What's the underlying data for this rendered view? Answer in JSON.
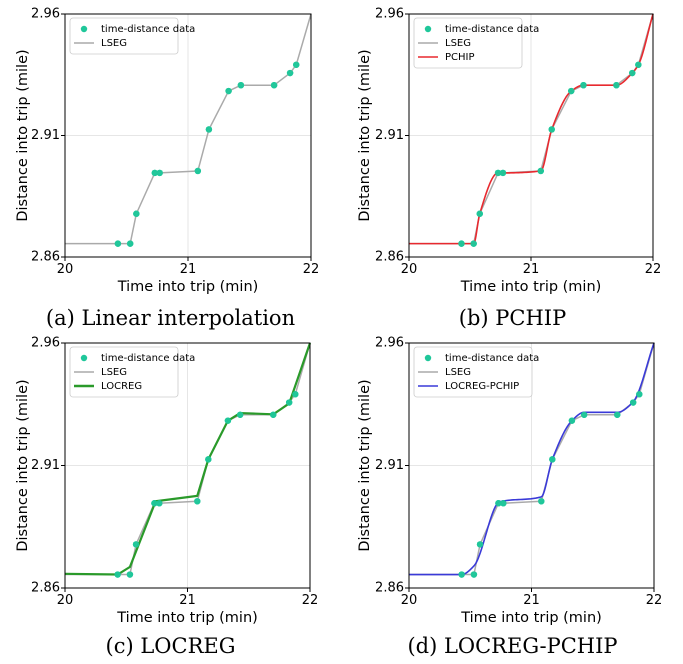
{
  "colors": {
    "data": "#1fc79a",
    "lseg": "#aaaaaa",
    "pchip": "#e8292f",
    "locreg": "#2a9a2a",
    "locreg_pchip": "#3a3ad8",
    "grid": "#e6e6e6"
  },
  "chart_data": [
    {
      "type": "line",
      "caption": "(a) Linear interpolation",
      "xlabel": "Time into trip (min)",
      "ylabel": "Distance into trip (mile)",
      "xlim": [
        20,
        22
      ],
      "ylim": [
        2.86,
        2.96
      ],
      "xticks": [
        "20",
        "21",
        "22"
      ],
      "yticks": [
        "2.86",
        "2.91",
        "2.96"
      ],
      "grid": true,
      "legend_position": "top-left",
      "series": [
        {
          "name": "time-distance data",
          "kind": "scatter",
          "color_key": "data",
          "x": [
            20.43,
            20.53,
            20.58,
            20.73,
            20.77,
            21.08,
            21.17,
            21.33,
            21.43,
            21.7,
            21.83,
            21.88
          ],
          "y": [
            2.8655,
            2.8655,
            2.8778,
            2.8946,
            2.8946,
            2.8954,
            2.9125,
            2.9283,
            2.9307,
            2.9307,
            2.9357,
            2.9391
          ]
        },
        {
          "name": "LSEG",
          "kind": "line",
          "color_key": "lseg",
          "x": [
            20,
            20.43,
            20.53,
            20.58,
            20.73,
            20.77,
            21.08,
            21.17,
            21.33,
            21.43,
            21.7,
            21.83,
            21.88,
            22
          ],
          "y": [
            2.8655,
            2.8655,
            2.8655,
            2.8778,
            2.8946,
            2.8946,
            2.8954,
            2.9125,
            2.9283,
            2.9307,
            2.9307,
            2.9357,
            2.9391,
            2.96
          ]
        }
      ]
    },
    {
      "type": "line",
      "caption": "(b) PCHIP",
      "xlabel": "Time into trip (min)",
      "ylabel": "Distance into trip (mile)",
      "xlim": [
        20,
        22
      ],
      "ylim": [
        2.86,
        2.96
      ],
      "xticks": [
        "20",
        "21",
        "22"
      ],
      "yticks": [
        "2.86",
        "2.91",
        "2.96"
      ],
      "grid": true,
      "legend_position": "top-left",
      "series": [
        {
          "name": "time-distance data",
          "kind": "scatter",
          "color_key": "data",
          "x": [
            20.43,
            20.53,
            20.58,
            20.73,
            20.77,
            21.08,
            21.17,
            21.33,
            21.43,
            21.7,
            21.83,
            21.88
          ],
          "y": [
            2.8655,
            2.8655,
            2.8778,
            2.8946,
            2.8946,
            2.8954,
            2.9125,
            2.9283,
            2.9307,
            2.9307,
            2.9357,
            2.9391
          ]
        },
        {
          "name": "LSEG",
          "kind": "line",
          "color_key": "lseg",
          "x": [
            20,
            20.43,
            20.53,
            20.58,
            20.73,
            20.77,
            21.08,
            21.17,
            21.33,
            21.43,
            21.7,
            21.83,
            21.88,
            22
          ],
          "y": [
            2.8655,
            2.8655,
            2.8655,
            2.8778,
            2.8946,
            2.8946,
            2.8954,
            2.9125,
            2.9283,
            2.9307,
            2.9307,
            2.9357,
            2.9391,
            2.96
          ]
        },
        {
          "name": "PCHIP",
          "kind": "line",
          "color_key": "pchip",
          "x": [
            20,
            20.43,
            20.53,
            20.58,
            20.73,
            20.77,
            21.08,
            21.17,
            21.33,
            21.43,
            21.7,
            21.83,
            21.88,
            22
          ],
          "y": [
            2.8655,
            2.8655,
            2.8655,
            2.8778,
            2.8946,
            2.8946,
            2.8954,
            2.9125,
            2.9283,
            2.9307,
            2.9307,
            2.9357,
            2.9391,
            2.96
          ]
        }
      ]
    },
    {
      "type": "line",
      "caption": "(c) LOCREG",
      "xlabel": "Time into trip (min)",
      "ylabel": "Distance into trip (mile)",
      "xlim": [
        20,
        22
      ],
      "ylim": [
        2.86,
        2.96
      ],
      "xticks": [
        "20",
        "21",
        "22"
      ],
      "yticks": [
        "2.86",
        "2.91",
        "2.96"
      ],
      "grid": true,
      "legend_position": "top-left",
      "series": [
        {
          "name": "time-distance data",
          "kind": "scatter",
          "color_key": "data",
          "x": [
            20.43,
            20.53,
            20.58,
            20.73,
            20.77,
            21.08,
            21.17,
            21.33,
            21.43,
            21.7,
            21.83,
            21.88
          ],
          "y": [
            2.8655,
            2.8655,
            2.8778,
            2.8946,
            2.8946,
            2.8954,
            2.9125,
            2.9283,
            2.9307,
            2.9307,
            2.9357,
            2.9391
          ]
        },
        {
          "name": "LSEG",
          "kind": "line",
          "color_key": "lseg",
          "x": [
            20,
            20.43,
            20.53,
            20.58,
            20.73,
            20.77,
            21.08,
            21.17,
            21.33,
            21.43,
            21.7,
            21.83,
            21.88,
            22
          ],
          "y": [
            2.8655,
            2.8655,
            2.8655,
            2.8778,
            2.8946,
            2.8946,
            2.8954,
            2.9125,
            2.9283,
            2.9307,
            2.9307,
            2.9357,
            2.9391,
            2.96
          ]
        },
        {
          "name": "LOCREG",
          "kind": "polyline",
          "color_key": "locreg",
          "x": [
            20,
            20.43,
            20.53,
            20.74,
            21.08,
            21.17,
            21.33,
            21.43,
            21.7,
            21.83,
            22
          ],
          "y": [
            2.8658,
            2.8655,
            2.8686,
            2.8954,
            2.8976,
            2.9125,
            2.9283,
            2.9314,
            2.9309,
            2.9353,
            2.96
          ]
        }
      ]
    },
    {
      "type": "line",
      "caption": "(d) LOCREG-PCHIP",
      "xlabel": "Time into trip (min)",
      "ylabel": "Distance into trip (mile)",
      "xlim": [
        20,
        22
      ],
      "ylim": [
        2.86,
        2.96
      ],
      "xticks": [
        "20",
        "21",
        "22"
      ],
      "yticks": [
        "2.86",
        "2.91",
        "2.96"
      ],
      "grid": true,
      "legend_position": "top-left",
      "series": [
        {
          "name": "time-distance data",
          "kind": "scatter",
          "color_key": "data",
          "x": [
            20.43,
            20.53,
            20.58,
            20.73,
            20.77,
            21.08,
            21.17,
            21.33,
            21.43,
            21.7,
            21.83,
            21.88
          ],
          "y": [
            2.8655,
            2.8655,
            2.8778,
            2.8946,
            2.8946,
            2.8954,
            2.9125,
            2.9283,
            2.9307,
            2.9307,
            2.9357,
            2.9391
          ]
        },
        {
          "name": "LSEG",
          "kind": "line",
          "color_key": "lseg",
          "x": [
            20,
            20.43,
            20.53,
            20.58,
            20.73,
            20.77,
            21.08,
            21.17,
            21.33,
            21.43,
            21.7,
            21.83,
            21.88,
            22
          ],
          "y": [
            2.8655,
            2.8655,
            2.8655,
            2.8778,
            2.8946,
            2.8946,
            2.8954,
            2.9125,
            2.9283,
            2.9307,
            2.9307,
            2.9357,
            2.9391,
            2.96
          ]
        },
        {
          "name": "LOCREG-PCHIP",
          "kind": "line",
          "color_key": "locreg_pchip",
          "x": [
            20,
            20.43,
            20.53,
            20.74,
            21.08,
            21.17,
            21.33,
            21.43,
            21.7,
            21.83,
            22
          ],
          "y": [
            2.8655,
            2.8655,
            2.869,
            2.8952,
            2.8972,
            2.9125,
            2.9283,
            2.9317,
            2.9317,
            2.936,
            2.96
          ]
        }
      ]
    }
  ]
}
